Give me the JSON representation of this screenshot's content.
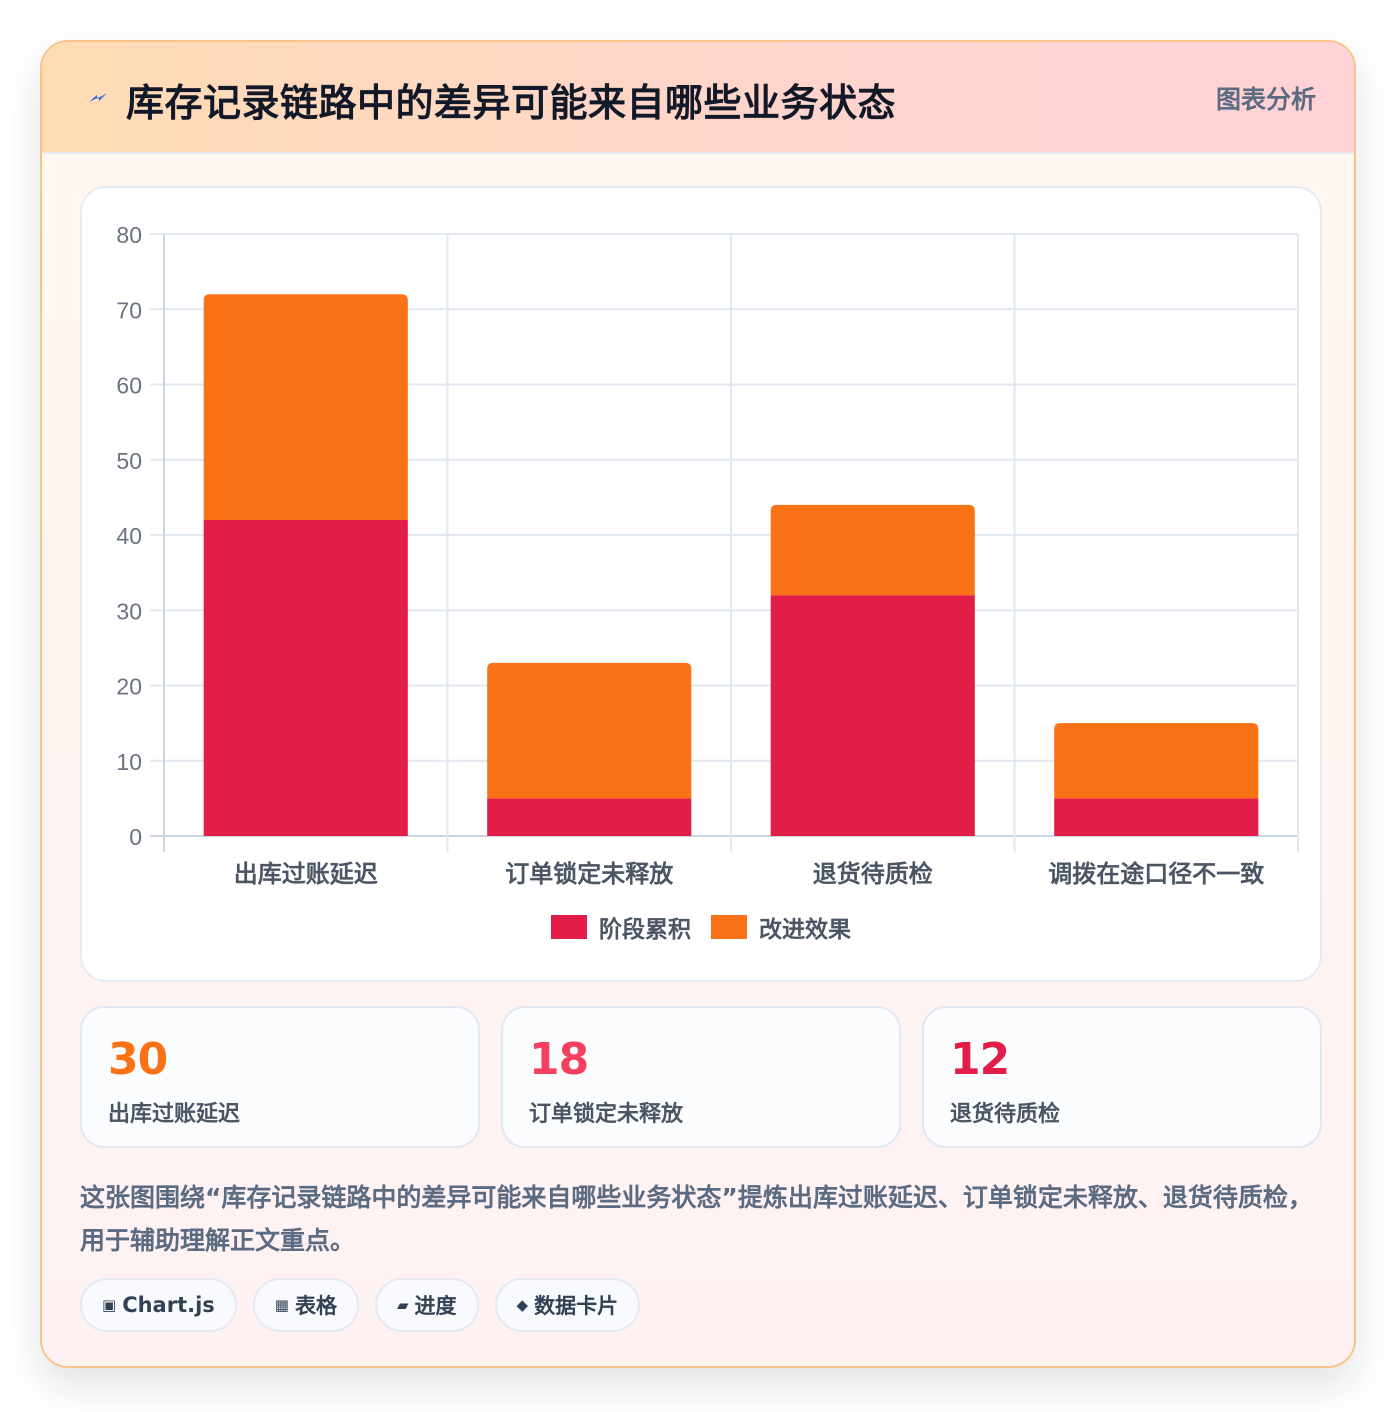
{
  "header": {
    "title": "库存记录链路中的差异可能来自哪些业务状态",
    "tag": "图表分析"
  },
  "chart_data": {
    "type": "bar",
    "stacked": true,
    "categories": [
      "出库过账延迟",
      "订单锁定未释放",
      "退货待质检",
      "调拨在途口径不一致"
    ],
    "series": [
      {
        "name": "阶段累积",
        "values": [
          42,
          5,
          32,
          5
        ],
        "color": "#e11d48"
      },
      {
        "name": "改进效果",
        "values": [
          30,
          18,
          12,
          10
        ],
        "color": "#f97316"
      }
    ],
    "ylim": [
      0,
      80
    ],
    "yticks": [
      0,
      10,
      20,
      30,
      40,
      50,
      60,
      70,
      80
    ],
    "grid": true,
    "legend": "bottom"
  },
  "stats": [
    {
      "value": "30",
      "label": "出库过账延迟",
      "color": "#f97316"
    },
    {
      "value": "18",
      "label": "订单锁定未释放",
      "color": "#f43f5e"
    },
    {
      "value": "12",
      "label": "退货待质检",
      "color": "#e11d48"
    }
  ],
  "description": "这张图围绕“库存记录链路中的差异可能来自哪些业务状态”提炼出库过账延迟、订单锁定未释放、退货待质检，用于辅助理解正文重点。",
  "chips": [
    {
      "icon": "▣",
      "icon_name": "chart-icon",
      "label": "Chart.js"
    },
    {
      "icon": "▦",
      "icon_name": "table-icon",
      "label": "表格"
    },
    {
      "icon": "▰",
      "icon_name": "progress-icon",
      "label": "进度"
    },
    {
      "icon": "◆",
      "icon_name": "card-icon",
      "label": "数据卡片"
    }
  ]
}
